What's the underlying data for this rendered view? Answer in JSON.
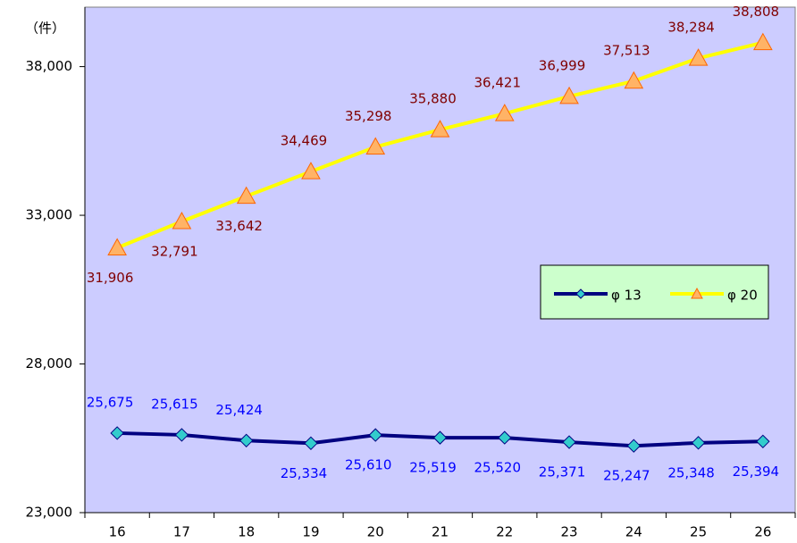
{
  "chart_data": {
    "type": "line",
    "y_label": "（件）",
    "categories": [
      "16",
      "17",
      "18",
      "19",
      "20",
      "21",
      "22",
      "23",
      "24",
      "25",
      "26"
    ],
    "series": [
      {
        "name": "φ 13",
        "color": "#000080",
        "marker": "diamond",
        "marker_color": "#33cccc",
        "label_color": "#0000ff",
        "values": [
          25675,
          25615,
          25424,
          25334,
          25610,
          25519,
          25520,
          25371,
          25247,
          25348,
          25394
        ],
        "value_labels": [
          "25,675",
          "25,615",
          "25,424",
          "25,334",
          "25,610",
          "25,519",
          "25,520",
          "25,371",
          "25,247",
          "25,348",
          "25,394"
        ]
      },
      {
        "name": "φ 20",
        "color": "#ffff00",
        "marker": "triangle",
        "marker_color": "#ffb366",
        "label_color": "#800000",
        "values": [
          31906,
          32791,
          33642,
          34469,
          35298,
          35880,
          36421,
          36999,
          37513,
          38284,
          38808
        ],
        "value_labels": [
          "31,906",
          "32,791",
          "33,642",
          "34,469",
          "35,298",
          "35,880",
          "36,421",
          "36,999",
          "37,513",
          "38,284",
          "38,808"
        ]
      }
    ],
    "ylim": [
      23000,
      40000
    ],
    "yticks": [
      {
        "value": 23000,
        "label": "23,000"
      },
      {
        "value": 28000,
        "label": "28,000"
      },
      {
        "value": 33000,
        "label": "33,000"
      },
      {
        "value": 38000,
        "label": "38,000"
      }
    ],
    "grid": false,
    "legend": "right"
  }
}
